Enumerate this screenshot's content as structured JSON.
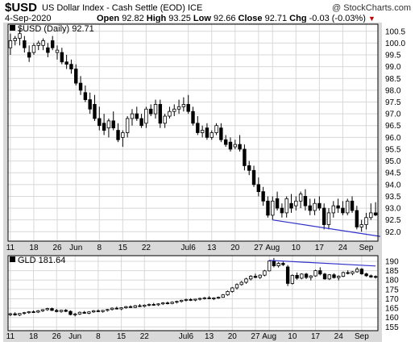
{
  "header": {
    "symbol": "$USD",
    "name": "US Dollar Index - Cash Settle (EOD)",
    "exchange": "ICE",
    "watermark": "@ StockCharts.com",
    "date": "4-Sep-2020",
    "open_label": "Open",
    "open": "92.82",
    "high_label": "High",
    "high": "93.25",
    "low_label": "Low",
    "low": "92.66",
    "close_label": "Close",
    "close": "92.71",
    "chg_label": "Chg",
    "chg": "-0.03 (-0.03%)",
    "chg_arrow": "▼"
  },
  "colors": {
    "frame_bg": "#d9d9d9",
    "panel_bg": "#ffffff",
    "grid": "#d8d8d8",
    "candle": "#000000",
    "trendline": "#3333cc",
    "down_arrow": "#c00000"
  },
  "chart_data": [
    {
      "type": "candlestick",
      "legend": "$USD (Daily) 92.71",
      "legend_placement": "top-left",
      "ylim": [
        91.6,
        100.8
      ],
      "yticks": [
        92.0,
        92.5,
        93.0,
        93.5,
        94.0,
        94.5,
        95.0,
        95.5,
        96.0,
        96.5,
        97.0,
        97.5,
        98.0,
        98.5,
        99.0,
        99.5,
        100.0,
        100.5
      ],
      "grid": true,
      "x_ticks": [
        "11",
        "18",
        "26",
        "Jun",
        "8",
        "15",
        "22",
        "Jul6",
        "13",
        "20",
        "27",
        "Aug",
        "10",
        "17",
        "24",
        "Sep"
      ],
      "x_tick_bar_index": [
        0,
        5,
        10,
        14,
        19,
        24,
        29,
        38,
        43,
        48,
        53,
        56,
        61,
        66,
        71,
        76
      ],
      "ohlc": [
        [
          99.8,
          100.4,
          99.5,
          100.1
        ],
        [
          100.1,
          100.3,
          99.9,
          100.2
        ],
        [
          100.2,
          100.6,
          99.9,
          100.4
        ],
        [
          100.1,
          100.3,
          99.6,
          99.8
        ],
        [
          99.6,
          99.9,
          99.2,
          99.4
        ],
        [
          99.6,
          100.0,
          99.5,
          99.9
        ],
        [
          99.9,
          100.1,
          99.7,
          100.0
        ],
        [
          99.9,
          100.2,
          99.7,
          100.1
        ],
        [
          99.8,
          100.0,
          99.4,
          99.6
        ],
        [
          100.1,
          100.3,
          99.7,
          99.8
        ],
        [
          99.6,
          99.9,
          99.3,
          99.7
        ],
        [
          99.6,
          99.8,
          99.1,
          99.2
        ],
        [
          99.2,
          99.5,
          98.9,
          99.1
        ],
        [
          99.1,
          99.3,
          98.7,
          98.9
        ],
        [
          98.9,
          99.1,
          98.2,
          98.3
        ],
        [
          98.3,
          98.6,
          97.8,
          98.0
        ],
        [
          97.9,
          98.2,
          97.5,
          97.6
        ],
        [
          97.6,
          97.9,
          97.0,
          97.2
        ],
        [
          97.4,
          97.8,
          96.7,
          96.8
        ],
        [
          96.8,
          97.3,
          96.3,
          96.5
        ],
        [
          96.6,
          97.0,
          96.1,
          96.3
        ],
        [
          96.4,
          96.8,
          96.0,
          96.7
        ],
        [
          96.7,
          97.1,
          96.3,
          96.4
        ],
        [
          96.3,
          96.6,
          95.8,
          95.9
        ],
        [
          96.0,
          96.3,
          95.6,
          96.2
        ],
        [
          96.2,
          96.9,
          96.0,
          96.8
        ],
        [
          96.8,
          97.2,
          96.5,
          97.0
        ],
        [
          97.0,
          97.3,
          96.7,
          96.8
        ],
        [
          96.8,
          97.0,
          96.4,
          96.5
        ],
        [
          96.6,
          97.3,
          96.4,
          97.2
        ],
        [
          97.2,
          97.4,
          96.9,
          97.0
        ],
        [
          97.0,
          97.6,
          96.8,
          97.4
        ],
        [
          97.4,
          97.6,
          96.4,
          96.6
        ],
        [
          96.6,
          97.0,
          96.4,
          96.9
        ],
        [
          96.9,
          97.3,
          96.8,
          97.1
        ],
        [
          97.1,
          97.4,
          96.9,
          97.2
        ],
        [
          97.2,
          97.6,
          97.0,
          97.3
        ],
        [
          97.3,
          97.7,
          97.1,
          97.4
        ],
        [
          97.4,
          97.8,
          97.0,
          97.1
        ],
        [
          97.1,
          97.3,
          96.5,
          96.6
        ],
        [
          96.6,
          96.9,
          96.1,
          96.2
        ],
        [
          96.2,
          96.5,
          96.0,
          96.3
        ],
        [
          96.4,
          96.6,
          95.9,
          96.0
        ],
        [
          96.0,
          96.3,
          95.9,
          96.2
        ],
        [
          96.2,
          96.6,
          96.1,
          96.5
        ],
        [
          96.4,
          96.6,
          95.8,
          95.9
        ],
        [
          95.9,
          96.1,
          95.6,
          95.7
        ],
        [
          95.8,
          96.0,
          95.4,
          95.5
        ],
        [
          95.6,
          95.9,
          95.5,
          95.7
        ],
        [
          95.7,
          96.1,
          95.4,
          95.5
        ],
        [
          95.5,
          95.7,
          94.6,
          94.8
        ],
        [
          94.8,
          95.0,
          94.4,
          94.6
        ],
        [
          94.6,
          94.8,
          93.9,
          94.0
        ],
        [
          94.0,
          94.3,
          93.5,
          93.7
        ],
        [
          93.7,
          93.9,
          93.1,
          93.3
        ],
        [
          93.3,
          93.5,
          92.6,
          92.7
        ],
        [
          92.7,
          93.5,
          92.5,
          93.3
        ],
        [
          93.4,
          93.7,
          92.9,
          93.0
        ],
        [
          93.0,
          93.2,
          92.6,
          92.8
        ],
        [
          92.8,
          93.5,
          92.6,
          93.4
        ],
        [
          93.2,
          93.6,
          92.8,
          93.0
        ],
        [
          93.1,
          93.5,
          92.9,
          93.3
        ],
        [
          93.3,
          93.7,
          93.0,
          93.6
        ],
        [
          93.5,
          93.8,
          92.9,
          93.1
        ],
        [
          93.1,
          93.4,
          92.7,
          92.9
        ],
        [
          92.9,
          93.4,
          92.7,
          93.2
        ],
        [
          93.2,
          93.5,
          92.9,
          93.0
        ],
        [
          93.0,
          93.2,
          92.1,
          92.3
        ],
        [
          92.3,
          93.0,
          92.1,
          92.8
        ],
        [
          92.8,
          93.3,
          92.6,
          93.1
        ],
        [
          93.1,
          93.4,
          92.8,
          93.0
        ],
        [
          93.0,
          93.3,
          92.7,
          92.8
        ],
        [
          92.8,
          93.4,
          92.7,
          93.3
        ],
        [
          93.3,
          93.5,
          92.8,
          92.9
        ],
        [
          92.9,
          93.1,
          92.1,
          92.2
        ],
        [
          92.2,
          92.5,
          92.0,
          92.3
        ],
        [
          92.3,
          92.8,
          92.1,
          92.6
        ],
        [
          92.6,
          93.2,
          92.5,
          92.8
        ],
        [
          92.8,
          93.25,
          92.66,
          92.71
        ]
      ],
      "trendlines": [
        {
          "from": [
            56,
            92.5
          ],
          "to": [
            79,
            91.8
          ]
        }
      ]
    },
    {
      "type": "candlestick",
      "legend": "GLD 181.64",
      "legend_placement": "top-left",
      "ylim": [
        153,
        193
      ],
      "yticks": [
        155,
        160,
        165,
        170,
        175,
        180,
        185,
        190
      ],
      "grid": true,
      "x_ticks": [
        "11",
        "18",
        "26",
        "Jun",
        "8",
        "15",
        "22",
        "Jul6",
        "13",
        "20",
        "27",
        "Aug",
        "10",
        "17",
        "24",
        "Sep"
      ],
      "x_tick_bar_index": [
        0,
        5,
        10,
        14,
        19,
        24,
        29,
        38,
        43,
        48,
        53,
        56,
        61,
        66,
        71,
        76
      ],
      "ohlc": [
        [
          161.5,
          162.5,
          160.8,
          162.0
        ],
        [
          162.0,
          162.8,
          161.0,
          161.4
        ],
        [
          161.4,
          162.4,
          160.8,
          162.2
        ],
        [
          162.2,
          163.0,
          161.6,
          162.6
        ],
        [
          162.6,
          163.4,
          162.0,
          163.1
        ],
        [
          163.1,
          163.8,
          162.5,
          162.9
        ],
        [
          162.9,
          164.0,
          162.4,
          163.6
        ],
        [
          163.6,
          164.5,
          163.0,
          164.2
        ],
        [
          164.2,
          165.2,
          163.6,
          164.8
        ],
        [
          164.8,
          165.3,
          163.5,
          163.8
        ],
        [
          163.8,
          164.6,
          162.8,
          163.2
        ],
        [
          163.2,
          164.2,
          162.6,
          163.9
        ],
        [
          163.9,
          164.5,
          162.9,
          163.3
        ],
        [
          163.3,
          163.8,
          161.2,
          161.6
        ],
        [
          161.6,
          162.5,
          160.6,
          161.9
        ],
        [
          161.9,
          163.2,
          161.4,
          162.8
        ],
        [
          162.8,
          163.5,
          162.0,
          162.3
        ],
        [
          162.3,
          163.4,
          161.8,
          163.0
        ],
        [
          163.0,
          164.0,
          162.5,
          163.6
        ],
        [
          163.6,
          164.3,
          162.9,
          163.2
        ],
        [
          163.2,
          164.1,
          162.6,
          163.8
        ],
        [
          163.8,
          164.6,
          163.2,
          164.3
        ],
        [
          164.3,
          165.4,
          163.8,
          165.0
        ],
        [
          165.0,
          165.8,
          164.3,
          164.6
        ],
        [
          164.6,
          165.5,
          164.0,
          165.2
        ],
        [
          165.2,
          166.2,
          164.7,
          165.8
        ],
        [
          165.8,
          166.5,
          165.1,
          165.4
        ],
        [
          165.4,
          166.7,
          165.0,
          166.3
        ],
        [
          166.3,
          167.2,
          165.6,
          166.0
        ],
        [
          166.0,
          167.0,
          165.4,
          166.6
        ],
        [
          166.6,
          167.5,
          166.0,
          167.0
        ],
        [
          167.0,
          167.8,
          166.3,
          166.8
        ],
        [
          166.8,
          167.6,
          166.2,
          167.3
        ],
        [
          167.3,
          168.2,
          166.7,
          167.8
        ],
        [
          167.8,
          168.5,
          167.0,
          167.5
        ],
        [
          167.5,
          168.6,
          167.1,
          168.2
        ],
        [
          168.2,
          169.0,
          167.5,
          168.6
        ],
        [
          168.6,
          169.5,
          168.0,
          169.2
        ],
        [
          169.2,
          170.1,
          168.6,
          169.6
        ],
        [
          169.6,
          170.3,
          168.8,
          169.3
        ],
        [
          169.3,
          170.0,
          168.7,
          169.8
        ],
        [
          169.8,
          170.6,
          169.1,
          170.2
        ],
        [
          170.2,
          171.0,
          169.6,
          170.5
        ],
        [
          170.5,
          171.4,
          169.8,
          170.1
        ],
        [
          170.1,
          170.8,
          169.3,
          170.4
        ],
        [
          170.4,
          171.2,
          169.9,
          170.8
        ],
        [
          170.8,
          172.5,
          170.5,
          172.1
        ],
        [
          172.1,
          174.4,
          171.6,
          173.9
        ],
        [
          173.9,
          176.3,
          173.3,
          175.8
        ],
        [
          175.8,
          178.2,
          175.0,
          177.6
        ],
        [
          177.6,
          179.5,
          177.0,
          178.8
        ],
        [
          178.8,
          181.2,
          178.0,
          180.6
        ],
        [
          180.6,
          182.6,
          179.8,
          182.0
        ],
        [
          182.0,
          183.4,
          181.0,
          181.4
        ],
        [
          181.4,
          183.0,
          180.6,
          182.6
        ],
        [
          182.6,
          185.4,
          182.0,
          184.9
        ],
        [
          184.9,
          190.5,
          184.6,
          190.1
        ],
        [
          190.1,
          191.8,
          186.8,
          187.6
        ],
        [
          187.6,
          189.6,
          186.7,
          188.9
        ],
        [
          188.9,
          189.8,
          187.5,
          188.2
        ],
        [
          187.0,
          188.0,
          176.8,
          178.2
        ],
        [
          178.2,
          183.0,
          177.6,
          182.5
        ],
        [
          182.5,
          184.0,
          180.2,
          181.0
        ],
        [
          181.0,
          183.6,
          180.4,
          183.2
        ],
        [
          183.2,
          183.8,
          180.6,
          181.4
        ],
        [
          181.4,
          182.6,
          179.8,
          182.2
        ],
        [
          182.2,
          185.5,
          181.8,
          185.0
        ],
        [
          185.0,
          186.8,
          182.5,
          183.2
        ],
        [
          183.2,
          183.8,
          180.2,
          180.6
        ],
        [
          180.6,
          183.2,
          180.0,
          182.8
        ],
        [
          182.8,
          183.6,
          180.8,
          181.3
        ],
        [
          181.3,
          182.5,
          179.8,
          182.0
        ],
        [
          182.0,
          184.5,
          181.5,
          184.0
        ],
        [
          184.0,
          185.2,
          183.0,
          183.5
        ],
        [
          183.5,
          184.8,
          182.6,
          184.4
        ],
        [
          184.4,
          186.8,
          183.9,
          185.8
        ],
        [
          185.8,
          186.4,
          182.8,
          183.3
        ],
        [
          183.3,
          183.9,
          181.7,
          182.3
        ],
        [
          182.3,
          182.9,
          181.2,
          181.6
        ],
        [
          181.9,
          182.5,
          180.8,
          181.64
        ]
      ],
      "trendlines": [
        {
          "from": [
            56,
            190.5
          ],
          "to": [
            79,
            187.5
          ]
        }
      ]
    }
  ]
}
